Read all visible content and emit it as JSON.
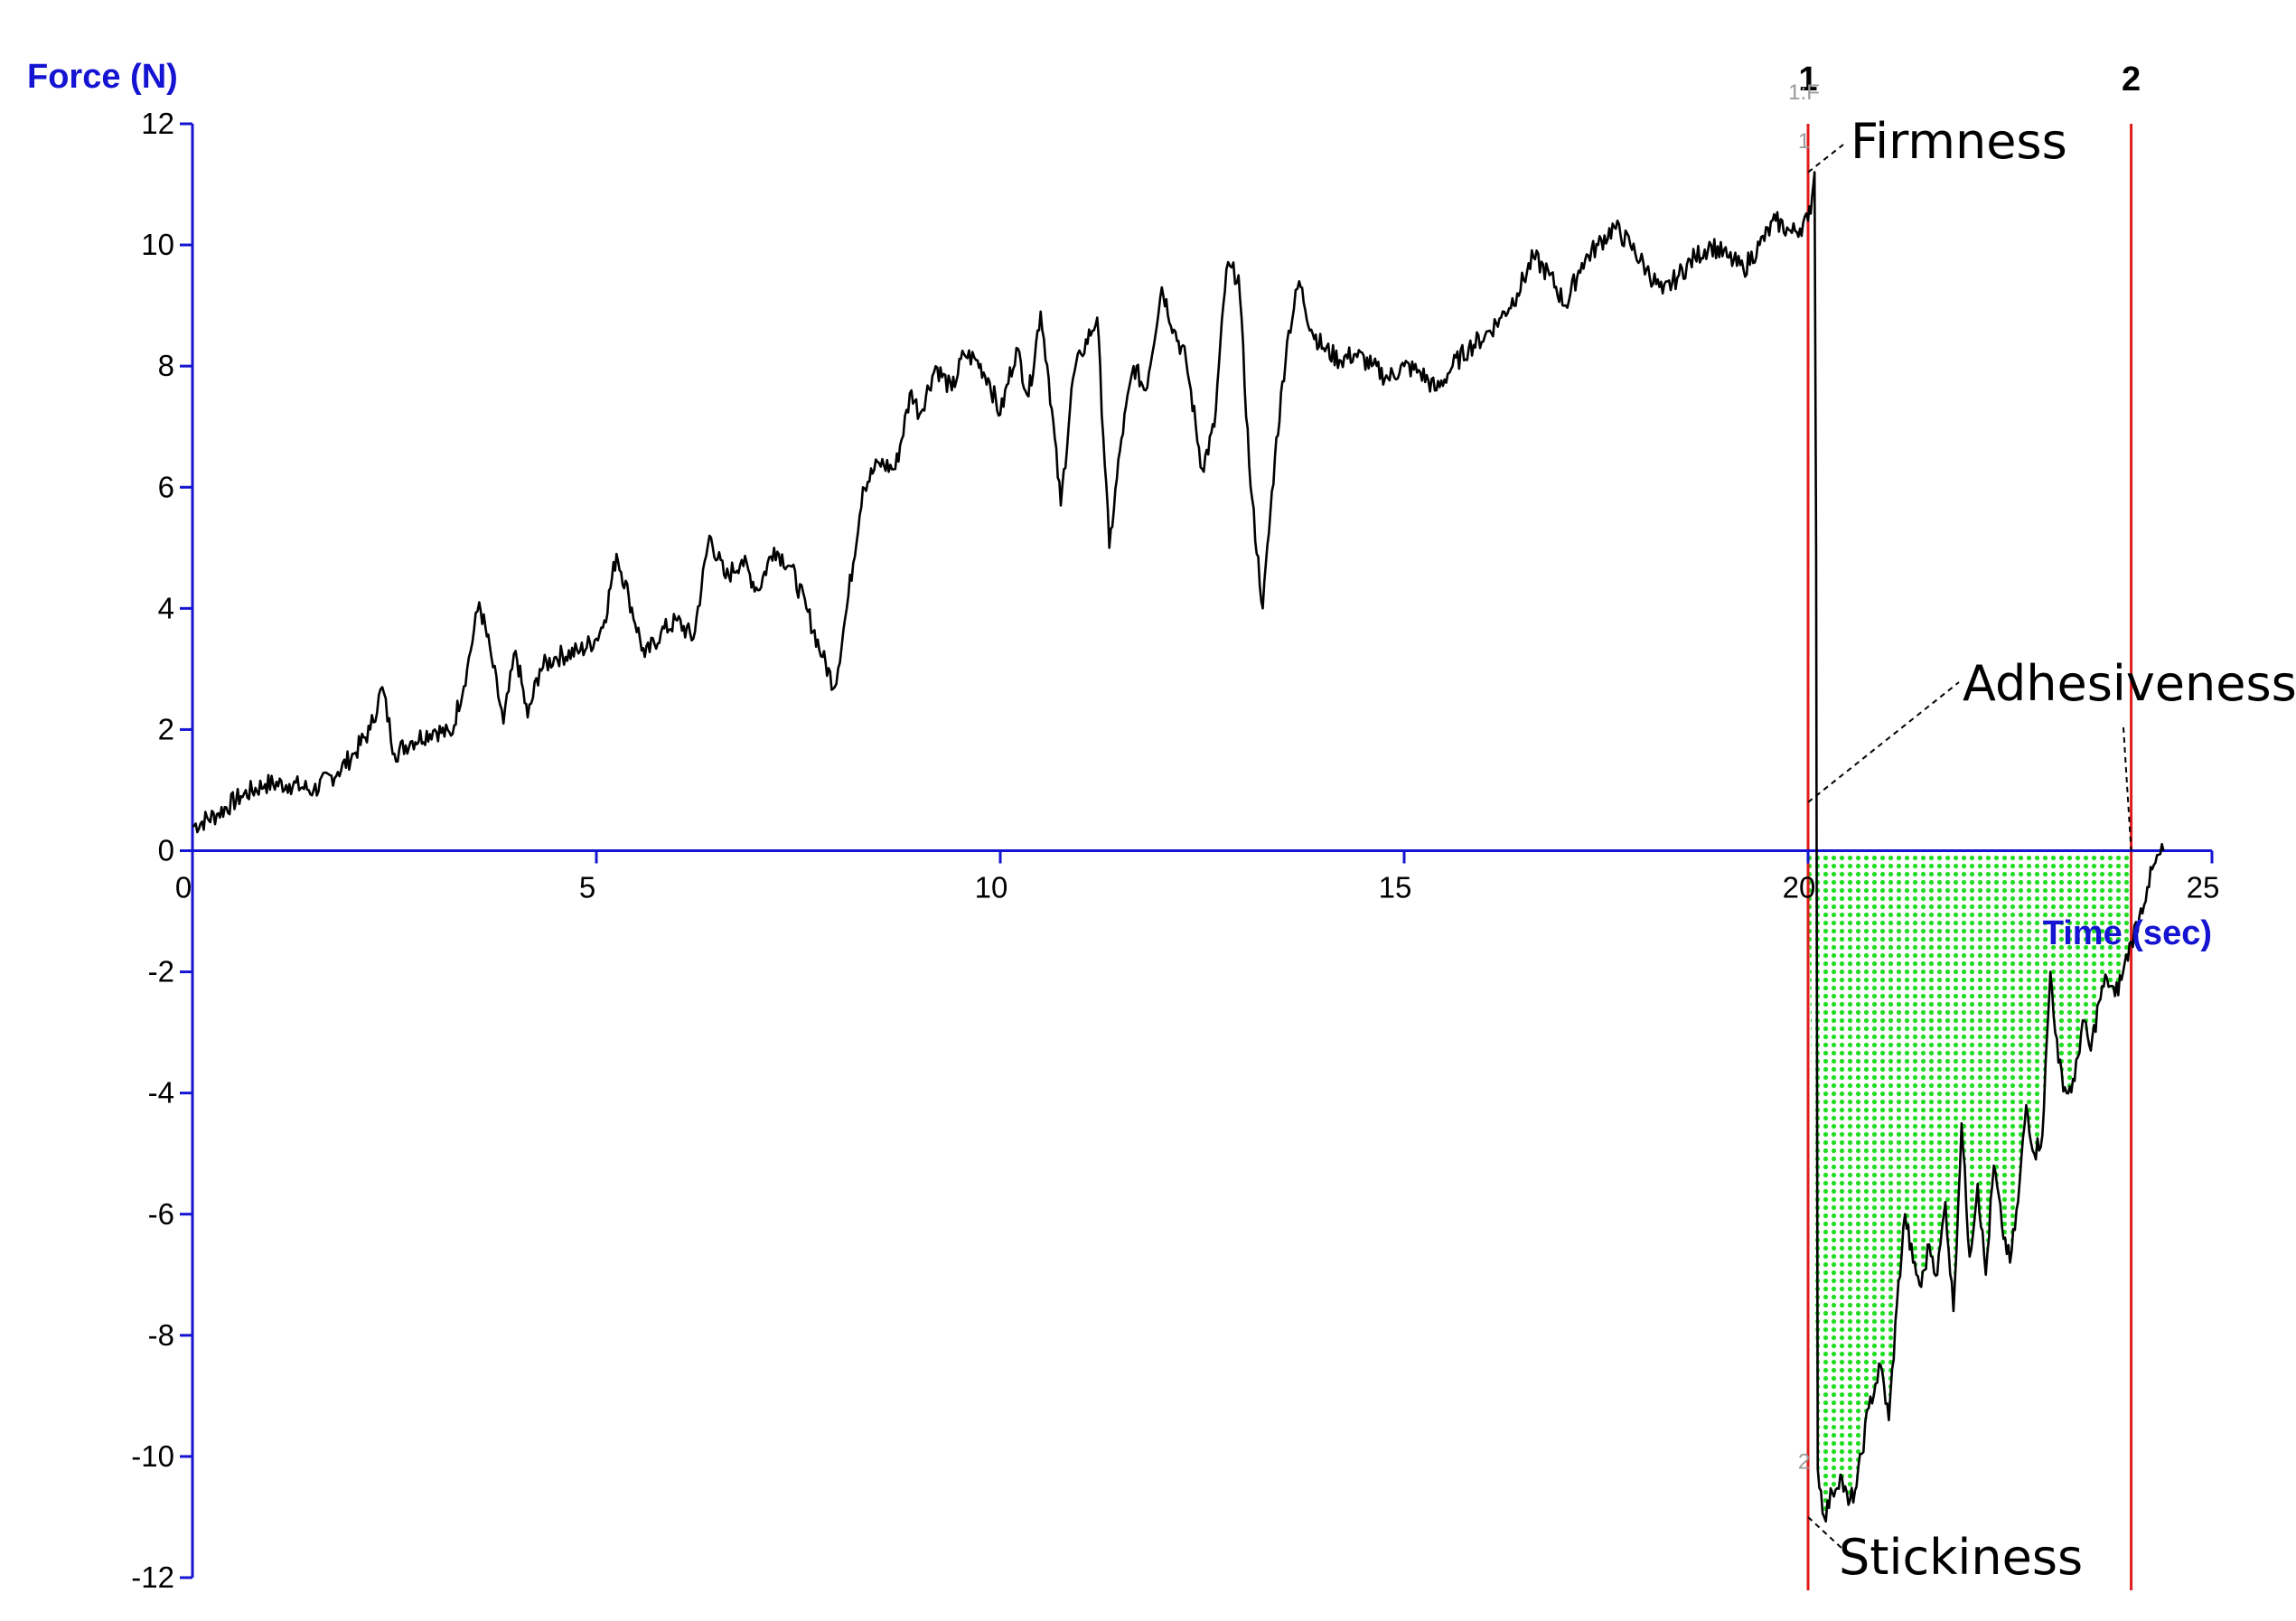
{
  "chart_data": {
    "type": "line",
    "title": "",
    "ylabel": "Force (N)",
    "xlabel": "Time (sec)",
    "xlim": [
      0,
      25
    ],
    "ylim": [
      -12,
      12
    ],
    "x_ticks": [
      0,
      5,
      10,
      15,
      20,
      25
    ],
    "y_ticks": [
      12,
      10,
      8,
      6,
      4,
      2,
      0,
      -2,
      -4,
      -6,
      -8,
      -10,
      -12
    ],
    "grid": false,
    "legend": "none",
    "series": [
      {
        "x": [
          0,
          0.3,
          0.6,
          0.9,
          1.2,
          1.5,
          1.8,
          2.0,
          2.2,
          2.35,
          2.5,
          2.7,
          3.0,
          3.2,
          3.4,
          3.55,
          3.7,
          3.85,
          4.0,
          4.15,
          4.3,
          4.5,
          4.8,
          5.0,
          5.1,
          5.25,
          5.4,
          5.6,
          5.8,
          6.0,
          6.2,
          6.4,
          6.6,
          6.8,
          7.0,
          7.2,
          7.4,
          7.6,
          7.8,
          7.95,
          8.1,
          8.3,
          8.5,
          8.7,
          8.9,
          9.0,
          9.2,
          9.4,
          9.55,
          9.7,
          9.85,
          10.0,
          10.2,
          10.35,
          10.5,
          10.6,
          10.75,
          10.9,
          11.0,
          11.2,
          11.35,
          11.5,
          11.65,
          11.8,
          12.0,
          12.15,
          12.3,
          12.5,
          12.65,
          12.8,
          12.95,
          13.1,
          13.25,
          13.4,
          13.55,
          13.7,
          13.85,
          14.0,
          14.2,
          14.4,
          14.6,
          14.8,
          15.0,
          15.2,
          15.4,
          15.6,
          15.8,
          16.0,
          16.2,
          16.4,
          16.6,
          16.8,
          17.0,
          17.2,
          17.4,
          17.6,
          17.8,
          18.0,
          18.2,
          18.4,
          18.6,
          18.8,
          19.0,
          19.2,
          19.4,
          19.6,
          19.8,
          20.0,
          20.05,
          20.08,
          20.1,
          20.12,
          20.2,
          20.3,
          20.4,
          20.5,
          20.6,
          20.75,
          20.9,
          21.0,
          21.1,
          21.2,
          21.3,
          21.4,
          21.5,
          21.6,
          21.7,
          21.8,
          21.9,
          22.0,
          22.1,
          22.2,
          22.3,
          22.4,
          22.5,
          22.6,
          22.7,
          22.8,
          22.9,
          23.0,
          23.1,
          23.2,
          23.3,
          23.4,
          23.5,
          23.6,
          23.7,
          23.8,
          23.9,
          24.0,
          24.1,
          24.2,
          24.3,
          24.4
        ],
        "values": [
          0.4,
          0.6,
          0.9,
          1.1,
          1.1,
          1.0,
          1.3,
          1.6,
          2.0,
          2.7,
          1.6,
          1.8,
          2.0,
          1.9,
          3.0,
          4.1,
          3.2,
          2.1,
          3.3,
          2.2,
          3.0,
          3.2,
          3.3,
          3.5,
          3.8,
          4.9,
          4.2,
          3.2,
          3.6,
          3.8,
          3.5,
          5.2,
          4.5,
          4.8,
          4.3,
          5.0,
          4.7,
          4.0,
          3.2,
          2.7,
          4.0,
          6.0,
          6.4,
          6.3,
          7.6,
          7.2,
          8.0,
          7.6,
          8.2,
          8.1,
          7.8,
          7.2,
          8.3,
          7.5,
          8.9,
          7.8,
          5.7,
          7.8,
          8.2,
          8.8,
          5.0,
          6.8,
          8.0,
          7.6,
          9.3,
          8.6,
          8.1,
          6.3,
          7.0,
          9.6,
          9.5,
          6.0,
          4.0,
          6.5,
          8.4,
          9.4,
          8.6,
          8.3,
          8.1,
          8.2,
          8.0,
          7.8,
          8.0,
          7.9,
          7.6,
          8.0,
          8.3,
          8.5,
          8.8,
          9.2,
          9.8,
          9.5,
          9.0,
          9.7,
          10.0,
          10.3,
          10.0,
          9.6,
          9.2,
          9.5,
          9.8,
          10.0,
          9.8,
          9.6,
          10.0,
          10.4,
          10.2,
          10.4,
          10.8,
          11.2,
          5.0,
          -10.2,
          -11.0,
          -10.6,
          -10.3,
          -10.8,
          -10.5,
          -9.2,
          -8.5,
          -9.4,
          -7.5,
          -6.0,
          -6.8,
          -7.2,
          -6.5,
          -7.0,
          -5.8,
          -7.6,
          -4.5,
          -6.7,
          -5.5,
          -7.0,
          -5.2,
          -6.2,
          -6.8,
          -5.8,
          -4.2,
          -5.0,
          -4.7,
          -2.0,
          -3.5,
          -4.0,
          -3.8,
          -2.8,
          -3.3,
          -2.5,
          -2.1,
          -2.4,
          -2.0,
          -1.5,
          -1.1,
          -0.6,
          -0.2,
          0.0
        ],
        "stroke": "#000000"
      }
    ],
    "markers": [
      {
        "label": "1",
        "x": 20.0
      },
      {
        "label": "2",
        "x": 24.0
      }
    ],
    "annotations": [
      {
        "text": "Firmness",
        "x": 20.0,
        "y": 11.2
      },
      {
        "text": "Adhesiveness",
        "x": 20.0,
        "y": 0.8
      },
      {
        "text": "Stickiness",
        "x": 20.0,
        "y": -11.0
      }
    ],
    "point_tags": [
      {
        "text": "1:F",
        "x": 19.95,
        "y": 12.4
      },
      {
        "text": "1",
        "x": 19.95,
        "y": 11.6
      },
      {
        "text": "2",
        "x": 19.95,
        "y": -10.2
      }
    ],
    "shaded_region": {
      "from_x": 20.0,
      "to_x": 24.0,
      "fill": "#22dd22"
    },
    "colors": {
      "axis": "#1414d2",
      "marker_line": "#e01919",
      "curve": "#000000",
      "shade": "#22dd22"
    }
  }
}
